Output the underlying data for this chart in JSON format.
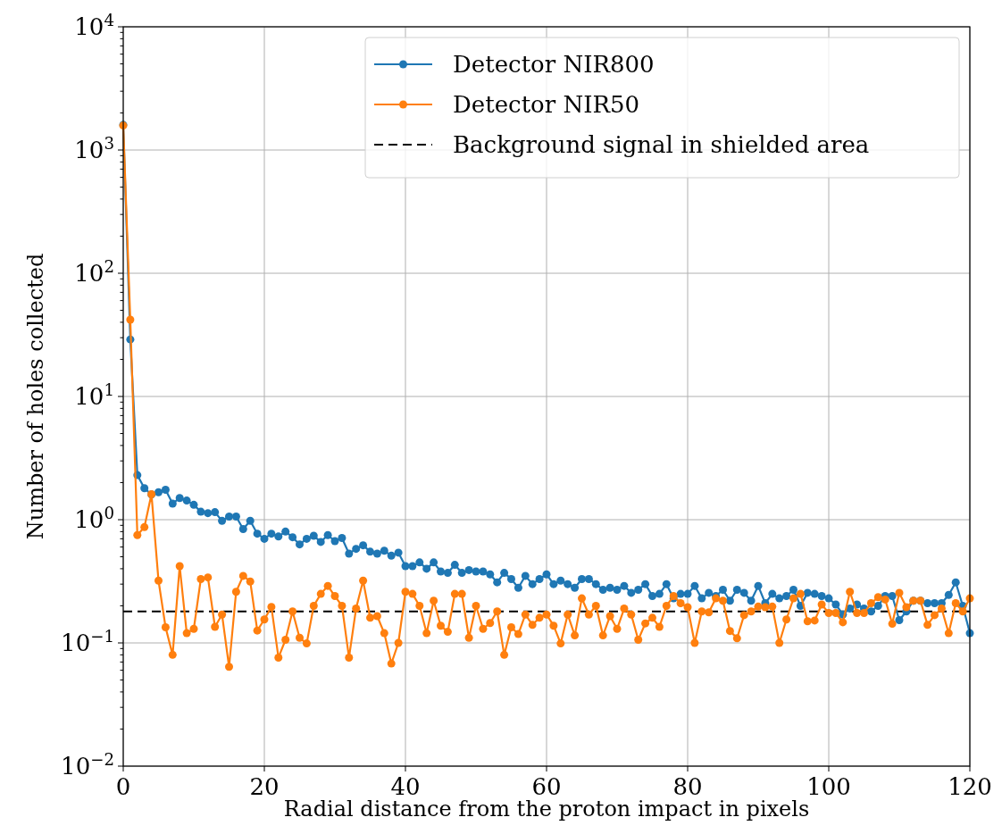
{
  "chart_data": {
    "type": "line",
    "xlabel": "Radial distance from the proton impact in pixels",
    "ylabel": "Number of holes collected",
    "log": "y",
    "grid": true,
    "legend": "top right",
    "marker": "circle",
    "line_style": "solid",
    "xlim": [
      0,
      120
    ],
    "xticks": [
      0,
      20,
      40,
      60,
      80,
      100,
      120
    ],
    "ylim": [
      0.01,
      10000
    ],
    "yticks": [
      {
        "value": 0.01,
        "label": "10$^{−2}$"
      },
      {
        "value": 0.02,
        "label": null
      },
      {
        "value": 0.03,
        "label": null
      },
      {
        "value": 0.04,
        "label": null
      },
      {
        "value": 0.05,
        "label": null
      },
      {
        "value": 0.06,
        "label": null
      },
      {
        "value": 0.07,
        "label": null
      },
      {
        "value": 0.08,
        "label": null
      },
      {
        "value": 0.09,
        "label": null
      },
      {
        "value": 0.1,
        "label": "10$^{−1}$"
      },
      {
        "value": 0.2,
        "label": null
      },
      {
        "value": 0.3,
        "label": null
      },
      {
        "value": 0.4,
        "label": null
      },
      {
        "value": 0.5,
        "label": null
      },
      {
        "value": 0.6,
        "label": null
      },
      {
        "value": 0.7,
        "label": null
      },
      {
        "value": 0.8,
        "label": null
      },
      {
        "value": 0.9,
        "label": null
      },
      {
        "value": 1,
        "label": "10$^{0}$"
      },
      {
        "value": 2,
        "label": null
      },
      {
        "value": 3,
        "label": null
      },
      {
        "value": 4,
        "label": null
      },
      {
        "value": 5,
        "label": null
      },
      {
        "value": 6,
        "label": null
      },
      {
        "value": 7,
        "label": null
      },
      {
        "value": 8,
        "label": null
      },
      {
        "value": 9,
        "label": null
      },
      {
        "value": 10,
        "label": "10$^{1}$"
      },
      {
        "value": 20,
        "label": null
      },
      {
        "value": 30,
        "label": null
      },
      {
        "value": 40,
        "label": null
      },
      {
        "value": 50,
        "label": null
      },
      {
        "value": 60,
        "label": null
      },
      {
        "value": 70,
        "label": null
      },
      {
        "value": 80,
        "label": null
      },
      {
        "value": 90,
        "label": null
      },
      {
        "value": 100,
        "label": "10$^{2}$"
      },
      {
        "value": 200,
        "label": null
      },
      {
        "value": 300,
        "label": null
      },
      {
        "value": 400,
        "label": null
      },
      {
        "value": 500,
        "label": null
      },
      {
        "value": 600,
        "label": null
      },
      {
        "value": 700,
        "label": null
      },
      {
        "value": 800,
        "label": null
      },
      {
        "value": 900,
        "label": null
      },
      {
        "value": 1000,
        "label": "10$^{3}$"
      },
      {
        "value": 2000,
        "label": null
      },
      {
        "value": 3000,
        "label": null
      },
      {
        "value": 4000,
        "label": null
      },
      {
        "value": 5000,
        "label": null
      },
      {
        "value": 6000,
        "label": null
      },
      {
        "value": 7000,
        "label": null
      },
      {
        "value": 8000,
        "label": null
      },
      {
        "value": 9000,
        "label": null
      },
      {
        "value": 10000,
        "label": "10$^{4}$"
      }
    ],
    "x": [
      0,
      1,
      2,
      3,
      4,
      5,
      6,
      7,
      8,
      9,
      10,
      11,
      12,
      13,
      14,
      15,
      16,
      17,
      18,
      19,
      20,
      21,
      22,
      23,
      24,
      25,
      26,
      27,
      28,
      29,
      30,
      31,
      32,
      33,
      34,
      35,
      36,
      37,
      38,
      39,
      40,
      41,
      42,
      43,
      44,
      45,
      46,
      47,
      48,
      49,
      50,
      51,
      52,
      53,
      54,
      55,
      56,
      57,
      58,
      59,
      60,
      61,
      62,
      63,
      64,
      65,
      66,
      67,
      68,
      69,
      70,
      71,
      72,
      73,
      74,
      75,
      76,
      77,
      78,
      79,
      80,
      81,
      82,
      83,
      84,
      85,
      86,
      87,
      88,
      89,
      90,
      91,
      92,
      93,
      94,
      95,
      96,
      97,
      98,
      99,
      100,
      101,
      102,
      103,
      104,
      105,
      106,
      107,
      108,
      109,
      110,
      111,
      112,
      113,
      114,
      115,
      116,
      117,
      118,
      119,
      120
    ],
    "series": [
      {
        "name": "Detector NIR800",
        "color": "#1f77b4",
        "values": [
          1600,
          29,
          2.3,
          1.8,
          1.6,
          1.67,
          1.75,
          1.35,
          1.5,
          1.43,
          1.32,
          1.16,
          1.13,
          1.15,
          0.98,
          1.06,
          1.06,
          0.84,
          0.98,
          0.77,
          0.7,
          0.77,
          0.73,
          0.8,
          0.72,
          0.63,
          0.7,
          0.74,
          0.66,
          0.75,
          0.67,
          0.71,
          0.53,
          0.58,
          0.62,
          0.55,
          0.53,
          0.56,
          0.51,
          0.54,
          0.42,
          0.42,
          0.45,
          0.4,
          0.45,
          0.38,
          0.37,
          0.43,
          0.37,
          0.39,
          0.38,
          0.38,
          0.36,
          0.31,
          0.37,
          0.33,
          0.28,
          0.35,
          0.3,
          0.33,
          0.36,
          0.3,
          0.32,
          0.3,
          0.28,
          0.33,
          0.33,
          0.3,
          0.27,
          0.28,
          0.27,
          0.29,
          0.255,
          0.27,
          0.3,
          0.24,
          0.25,
          0.3,
          0.23,
          0.25,
          0.25,
          0.29,
          0.23,
          0.255,
          0.24,
          0.27,
          0.22,
          0.27,
          0.255,
          0.22,
          0.29,
          0.21,
          0.25,
          0.23,
          0.24,
          0.27,
          0.2,
          0.255,
          0.25,
          0.24,
          0.23,
          0.205,
          0.17,
          0.19,
          0.205,
          0.19,
          0.18,
          0.2,
          0.24,
          0.24,
          0.153,
          0.18,
          0.22,
          0.22,
          0.21,
          0.21,
          0.21,
          0.245,
          0.31,
          0.2,
          0.12
        ]
      },
      {
        "name": "Detector NIR50",
        "color": "#ff7f0e",
        "values": [
          1580,
          42,
          0.75,
          0.87,
          1.61,
          0.32,
          0.134,
          0.08,
          0.42,
          0.12,
          0.13,
          0.33,
          0.34,
          0.135,
          0.17,
          0.064,
          0.26,
          0.35,
          0.315,
          0.126,
          0.155,
          0.196,
          0.076,
          0.106,
          0.18,
          0.11,
          0.099,
          0.2,
          0.25,
          0.29,
          0.24,
          0.2,
          0.076,
          0.19,
          0.32,
          0.16,
          0.165,
          0.12,
          0.068,
          0.1,
          0.26,
          0.25,
          0.2,
          0.12,
          0.22,
          0.138,
          0.123,
          0.25,
          0.25,
          0.11,
          0.2,
          0.13,
          0.145,
          0.18,
          0.08,
          0.134,
          0.118,
          0.17,
          0.14,
          0.16,
          0.17,
          0.138,
          0.099,
          0.17,
          0.115,
          0.23,
          0.17,
          0.2,
          0.115,
          0.165,
          0.13,
          0.19,
          0.17,
          0.106,
          0.144,
          0.16,
          0.135,
          0.2,
          0.24,
          0.21,
          0.195,
          0.1,
          0.18,
          0.177,
          0.23,
          0.22,
          0.125,
          0.109,
          0.168,
          0.18,
          0.197,
          0.195,
          0.197,
          0.1,
          0.155,
          0.23,
          0.25,
          0.15,
          0.152,
          0.205,
          0.175,
          0.175,
          0.147,
          0.26,
          0.175,
          0.175,
          0.21,
          0.235,
          0.225,
          0.143,
          0.255,
          0.195,
          0.22,
          0.22,
          0.14,
          0.168,
          0.19,
          0.12,
          0.21,
          0.18,
          0.23
        ]
      }
    ],
    "ref_lines": [
      {
        "axis": "y",
        "value": 0.18,
        "label": "Background signal in shielded area",
        "color": "#000000",
        "line_style": "dashed"
      }
    ]
  }
}
